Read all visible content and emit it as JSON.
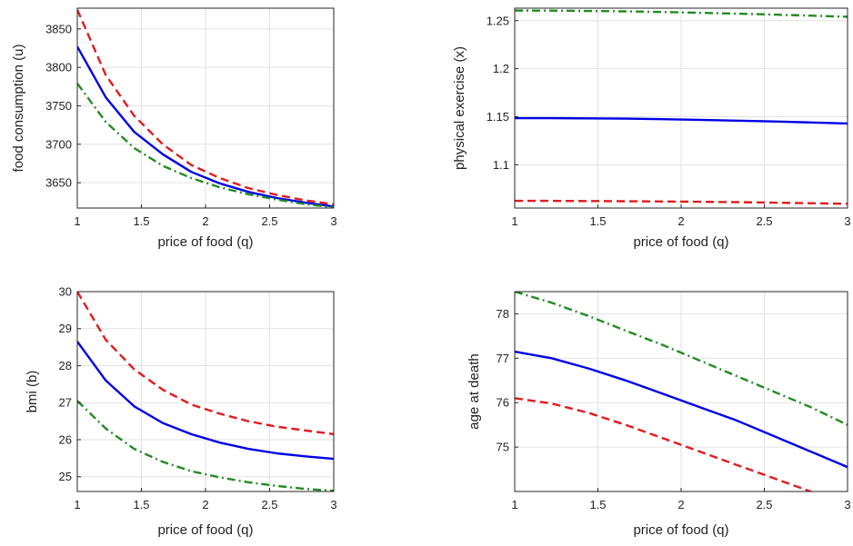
{
  "chart_data": [
    {
      "type": "line",
      "xlabel": "price of food (q)",
      "ylabel": "food consumption (u)",
      "xlim": [
        1,
        3
      ],
      "ylim": [
        3617,
        3877
      ],
      "xticks": [
        1,
        1.5,
        2,
        2.5,
        3
      ],
      "yticks": [
        3650,
        3700,
        3750,
        3800,
        3850
      ],
      "grid": true,
      "x": [
        1,
        1.222,
        1.444,
        1.667,
        1.889,
        2.111,
        2.333,
        2.556,
        2.778,
        3
      ],
      "series": [
        {
          "color": "#e31a1c",
          "dash": "dashed",
          "values": [
            3875,
            3790,
            3737,
            3700,
            3673,
            3656,
            3643,
            3634,
            3627,
            3622
          ]
        },
        {
          "color": "#0000e6",
          "dash": "solid",
          "values": [
            3827,
            3761,
            3716,
            3687,
            3664,
            3649,
            3638,
            3630,
            3624,
            3619
          ]
        },
        {
          "color": "#228b22",
          "dash": "dashdot",
          "values": [
            3779,
            3729,
            3695,
            3672,
            3656,
            3644,
            3635,
            3628,
            3622,
            3618
          ]
        }
      ]
    },
    {
      "type": "line",
      "xlabel": "price of food (q)",
      "ylabel": "physical exercise (x)",
      "xlim": [
        1,
        3
      ],
      "ylim": [
        1.055,
        1.263
      ],
      "xticks": [
        1,
        1.5,
        2,
        2.5,
        3
      ],
      "yticks": [
        1.1,
        1.15,
        1.2,
        1.25
      ],
      "grid": true,
      "x": [
        1,
        1.222,
        1.444,
        1.667,
        1.889,
        2.111,
        2.333,
        2.556,
        2.778,
        3
      ],
      "series": [
        {
          "color": "#e31a1c",
          "dash": "dashed",
          "values": [
            1.0625,
            1.0625,
            1.0623,
            1.0621,
            1.0618,
            1.0615,
            1.0611,
            1.0606,
            1.06,
            1.0594
          ]
        },
        {
          "color": "#0000e6",
          "dash": "solid",
          "values": [
            1.1485,
            1.1485,
            1.1483,
            1.148,
            1.1475,
            1.1468,
            1.146,
            1.1451,
            1.1441,
            1.143
          ]
        },
        {
          "color": "#228b22",
          "dash": "dashdot",
          "values": [
            1.2605,
            1.2604,
            1.2601,
            1.2597,
            1.259,
            1.2582,
            1.2573,
            1.2563,
            1.2552,
            1.254
          ]
        }
      ]
    },
    {
      "type": "line",
      "xlabel": "price of food (q)",
      "ylabel": "bmi (b)",
      "xlim": [
        1,
        3
      ],
      "ylim": [
        24.6,
        30.0
      ],
      "xticks": [
        1,
        1.5,
        2,
        2.5,
        3
      ],
      "yticks": [
        25,
        26,
        27,
        28,
        29,
        30
      ],
      "grid": true,
      "x": [
        1,
        1.222,
        1.444,
        1.667,
        1.889,
        2.111,
        2.333,
        2.556,
        2.778,
        3
      ],
      "series": [
        {
          "color": "#e31a1c",
          "dash": "dashed",
          "values": [
            30.0,
            28.7,
            27.9,
            27.35,
            26.95,
            26.7,
            26.5,
            26.35,
            26.25,
            26.15
          ]
        },
        {
          "color": "#0000e6",
          "dash": "solid",
          "values": [
            28.65,
            27.6,
            26.9,
            26.45,
            26.15,
            25.92,
            25.75,
            25.63,
            25.55,
            25.48
          ]
        },
        {
          "color": "#228b22",
          "dash": "dashdot",
          "values": [
            27.05,
            26.3,
            25.75,
            25.4,
            25.15,
            24.98,
            24.85,
            24.75,
            24.67,
            24.62
          ]
        }
      ]
    },
    {
      "type": "line",
      "xlabel": "price of food (q)",
      "ylabel": "age at death",
      "xlim": [
        1,
        3
      ],
      "ylim": [
        74.0,
        78.5
      ],
      "xticks": [
        1,
        1.5,
        2,
        2.5,
        3
      ],
      "yticks": [
        75,
        76,
        77,
        78
      ],
      "grid": true,
      "x": [
        1,
        1.222,
        1.444,
        1.667,
        1.889,
        2.111,
        2.333,
        2.556,
        2.778,
        3
      ],
      "series": [
        {
          "color": "#e31a1c",
          "dash": "dashed",
          "values": [
            76.1,
            75.98,
            75.77,
            75.5,
            75.2,
            74.9,
            74.6,
            74.3,
            74.0,
            73.7
          ]
        },
        {
          "color": "#0000e6",
          "dash": "solid",
          "values": [
            77.15,
            77.0,
            76.77,
            76.5,
            76.2,
            75.9,
            75.6,
            75.25,
            74.9,
            74.55
          ]
        },
        {
          "color": "#228b22",
          "dash": "dashdot",
          "values": [
            78.5,
            78.25,
            77.95,
            77.62,
            77.3,
            76.95,
            76.6,
            76.25,
            75.9,
            75.5
          ]
        }
      ]
    }
  ]
}
